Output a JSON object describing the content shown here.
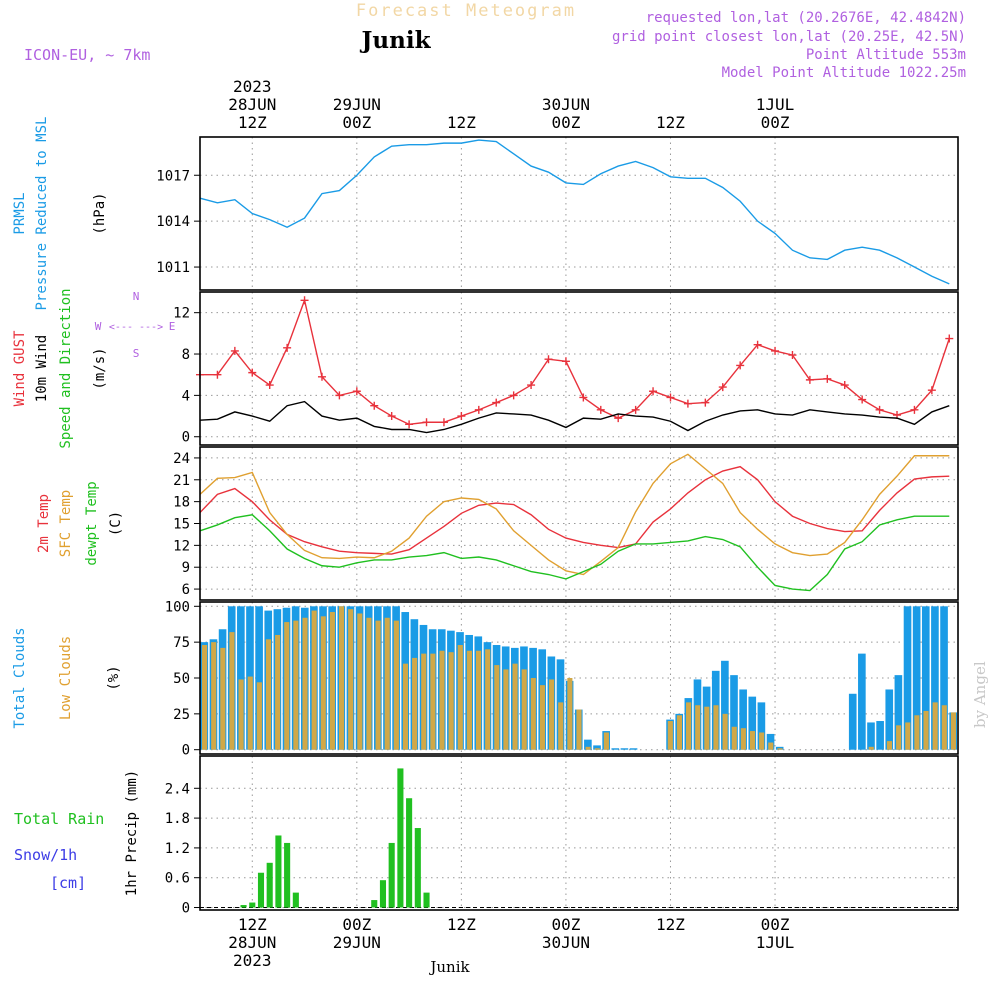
{
  "header": {
    "title": "Forecast Meteogram",
    "location": "Junik",
    "model": "ICON-EU, ~ 7km",
    "requested": "requested lon,lat (20.2676E, 42.4842N)",
    "gridpoint": "grid point closest lon,lat (20.25E, 42.5N)",
    "point_altitude": "Point Altitude 553m",
    "model_altitude": "Model Point Altitude 1022.25m"
  },
  "footer": {
    "location": "Junik",
    "watermark": "by Angel"
  },
  "colors": {
    "pressure": "#1a9be6",
    "gust": "#e8323c",
    "wind": "#000000",
    "temp": "#e8323c",
    "sfc": "#e0a030",
    "dew": "#20c020",
    "total_cloud": "#1a9be6",
    "low_cloud": "#d0a848",
    "rain": "#20c020",
    "snow": "#3c3ce6",
    "purple": "#b060e0"
  },
  "chart_data": {
    "type": "meteogram",
    "time_axis": {
      "start": "2023-06-28 06Z",
      "end": "2023-07-01 21Z",
      "step": "1h",
      "top_labels": [
        {
          "lines": [
            "2023",
            "28JUN",
            "12Z"
          ]
        },
        {
          "lines": [
            "29JUN",
            "00Z"
          ]
        },
        {
          "lines": [
            "12Z"
          ]
        },
        {
          "lines": [
            "30JUN",
            "00Z"
          ]
        },
        {
          "lines": [
            "12Z"
          ]
        },
        {
          "lines": [
            "1JUL",
            "00Z"
          ]
        }
      ],
      "bottom_labels": [
        {
          "lines": [
            "12Z",
            "28JUN",
            "2023"
          ]
        },
        {
          "lines": [
            "00Z",
            "29JUN"
          ]
        },
        {
          "lines": [
            "12Z"
          ]
        },
        {
          "lines": [
            "00Z",
            "30JUN"
          ]
        },
        {
          "lines": [
            "12Z"
          ]
        },
        {
          "lines": [
            "00Z",
            "1JUL"
          ]
        }
      ]
    },
    "panels": [
      {
        "id": "pressure",
        "ylabels": [
          "PRMSL",
          "Pressure Reduced to MSL"
        ],
        "unit": "(hPa)",
        "ylim": [
          1009.5,
          1019.5
        ],
        "yticks": [
          1011,
          1014,
          1017
        ],
        "series": [
          {
            "name": "PRMSL",
            "x": [
              6,
              8,
              10,
              12,
              14,
              16,
              18,
              20,
              22,
              24,
              26,
              28,
              30,
              32,
              34,
              36,
              38,
              40,
              42,
              44,
              46,
              48,
              50,
              52,
              54,
              56,
              58,
              60,
              62,
              64,
              66,
              68,
              70,
              72,
              74,
              76,
              78,
              80,
              82,
              84,
              86,
              88,
              90,
              92
            ],
            "y": [
              1015.5,
              1015.2,
              1015.4,
              1014.5,
              1014.1,
              1013.6,
              1014.2,
              1015.8,
              1016.0,
              1017.0,
              1018.2,
              1018.9,
              1019.0,
              1019.0,
              1019.1,
              1019.1,
              1019.3,
              1019.2,
              1018.4,
              1017.6,
              1017.2,
              1016.5,
              1016.4,
              1017.1,
              1017.6,
              1017.9,
              1017.5,
              1016.9,
              1016.8,
              1016.8,
              1016.2,
              1015.3,
              1014.0,
              1013.2,
              1012.1,
              1011.6,
              1011.5,
              1012.1,
              1012.3,
              1012.1,
              1011.6,
              1011.0,
              1010.4,
              1009.9
            ]
          }
        ]
      },
      {
        "id": "wind",
        "ylabels": [
          "Wind GUST",
          "10m Wind",
          "Speed and Direction"
        ],
        "unit": "(m/s)",
        "compass": {
          "n": "N",
          "s": "S",
          "e": "E",
          "w": "W",
          "arrow": "<--- --->"
        },
        "ylim": [
          -0.8,
          14
        ],
        "yticks": [
          0,
          4,
          8,
          12
        ],
        "series": [
          {
            "name": "Wind GUST",
            "x": [
              6,
              8,
              10,
              12,
              14,
              16,
              18,
              20,
              22,
              24,
              26,
              28,
              30,
              32,
              34,
              36,
              38,
              40,
              42,
              44,
              46,
              48,
              50,
              52,
              54,
              56,
              58,
              60,
              62,
              64,
              66,
              68,
              70,
              72,
              74,
              76,
              78,
              80,
              82,
              84,
              86,
              88,
              90,
              92
            ],
            "y": [
              6.0,
              6.0,
              8.3,
              6.2,
              5.0,
              8.6,
              13.2,
              5.8,
              4.0,
              4.4,
              3.0,
              2.0,
              1.2,
              1.4,
              1.4,
              2.0,
              2.6,
              3.3,
              4.0,
              5.0,
              7.5,
              7.3,
              3.8,
              2.6,
              1.8,
              2.6,
              4.4,
              3.8,
              3.2,
              3.3,
              4.8,
              6.9,
              8.9,
              8.3,
              7.9,
              5.5,
              5.6,
              5.0,
              3.6,
              2.6,
              2.1,
              2.6,
              4.5,
              9.5
            ]
          },
          {
            "name": "10m Wind",
            "x": [
              6,
              8,
              10,
              12,
              14,
              16,
              18,
              20,
              22,
              24,
              26,
              28,
              30,
              32,
              34,
              36,
              38,
              40,
              42,
              44,
              46,
              48,
              50,
              52,
              54,
              56,
              58,
              60,
              62,
              64,
              66,
              68,
              70,
              72,
              74,
              76,
              78,
              80,
              82,
              84,
              86,
              88,
              90,
              92
            ],
            "y": [
              1.6,
              1.7,
              2.4,
              2.0,
              1.5,
              3.0,
              3.4,
              2.0,
              1.6,
              1.8,
              1.0,
              0.7,
              0.7,
              0.4,
              0.7,
              1.2,
              1.8,
              2.3,
              2.2,
              2.1,
              1.6,
              0.9,
              1.8,
              1.7,
              2.2,
              2.0,
              1.9,
              1.5,
              0.6,
              1.5,
              2.1,
              2.5,
              2.6,
              2.2,
              2.1,
              2.6,
              2.4,
              2.2,
              2.1,
              1.9,
              1.8,
              1.2,
              2.4,
              3.0
            ]
          }
        ]
      },
      {
        "id": "temp",
        "ylabels": [
          "2m Temp",
          "SFC Temp",
          "dewpt Temp"
        ],
        "unit": "(C)",
        "ylim": [
          4.5,
          25.5
        ],
        "yticks": [
          6,
          9,
          12,
          15,
          18,
          21,
          24
        ],
        "series": [
          {
            "name": "2m Temp",
            "x": [
              6,
              8,
              10,
              12,
              14,
              16,
              18,
              20,
              22,
              24,
              26,
              28,
              30,
              32,
              34,
              36,
              38,
              40,
              42,
              44,
              46,
              48,
              50,
              52,
              54,
              56,
              58,
              60,
              62,
              64,
              66,
              68,
              70,
              72,
              74,
              76,
              78,
              80,
              82,
              84,
              86,
              88,
              90,
              92
            ],
            "y": [
              16.5,
              19.0,
              19.8,
              18.0,
              15.5,
              13.5,
              12.5,
              11.8,
              11.2,
              11.0,
              10.9,
              10.8,
              11.4,
              13.0,
              14.6,
              16.4,
              17.5,
              17.8,
              17.6,
              16.2,
              14.2,
              13.0,
              12.4,
              12.0,
              11.7,
              12.2,
              15.2,
              17.0,
              19.2,
              21.0,
              22.2,
              22.8,
              21.0,
              18.0,
              16.0,
              15.0,
              14.3,
              13.9,
              14.0,
              16.8,
              19.2,
              21.1,
              21.4,
              21.5
            ]
          },
          {
            "name": "SFC Temp",
            "x": [
              6,
              8,
              10,
              12,
              14,
              16,
              18,
              20,
              22,
              24,
              26,
              28,
              30,
              32,
              34,
              36,
              38,
              40,
              42,
              44,
              46,
              48,
              50,
              52,
              54,
              56,
              58,
              60,
              62,
              64,
              66,
              68,
              70,
              72,
              74,
              76,
              78,
              80,
              82,
              84,
              86,
              88,
              90,
              92
            ],
            "y": [
              19.0,
              21.2,
              21.3,
              22.0,
              16.5,
              13.5,
              11.3,
              10.3,
              10.2,
              10.4,
              10.3,
              11.2,
              13.0,
              16.0,
              18.0,
              18.5,
              18.3,
              17.0,
              14.0,
              12.0,
              10.0,
              8.5,
              8.0,
              9.8,
              11.7,
              16.6,
              20.5,
              23.2,
              24.5,
              22.5,
              20.5,
              16.5,
              14.2,
              12.2,
              11.0,
              10.6,
              10.8,
              12.4,
              15.5,
              19.0,
              21.5,
              24.3,
              24.3,
              24.3
            ]
          },
          {
            "name": "dewpt Temp",
            "x": [
              6,
              8,
              10,
              12,
              14,
              16,
              18,
              20,
              22,
              24,
              26,
              28,
              30,
              32,
              34,
              36,
              38,
              40,
              42,
              44,
              46,
              48,
              50,
              52,
              54,
              56,
              58,
              60,
              62,
              64,
              66,
              68,
              70,
              72,
              74,
              76,
              78,
              80,
              82,
              84,
              86,
              88,
              90,
              92
            ],
            "y": [
              14.0,
              14.8,
              15.8,
              16.2,
              14.0,
              11.5,
              10.2,
              9.2,
              9.0,
              9.6,
              10.0,
              10.0,
              10.4,
              10.6,
              11.0,
              10.2,
              10.4,
              10.0,
              9.2,
              8.4,
              8.0,
              7.4,
              8.4,
              9.4,
              11.2,
              12.2,
              12.2,
              12.4,
              12.6,
              13.2,
              12.8,
              11.8,
              9.0,
              6.5,
              6.0,
              5.8,
              8.0,
              11.5,
              12.5,
              14.8,
              15.5,
              16.0,
              16.0,
              16.0
            ]
          }
        ]
      },
      {
        "id": "clouds",
        "ylabels": [
          "Total Clouds",
          "Low Clouds"
        ],
        "unit": "(%)",
        "ylim": [
          -3,
          103
        ],
        "yticks": [
          0,
          25,
          50,
          75,
          100
        ],
        "series": [
          {
            "name": "Total Clouds",
            "values": [
              75,
              77,
              84,
              100,
              100,
              100,
              100,
              97,
              98,
              99,
              100,
              99,
              100,
              100,
              100,
              100,
              100,
              100,
              100,
              100,
              100,
              100,
              96,
              91,
              87,
              84,
              84,
              83,
              82,
              80,
              79,
              75,
              73,
              72,
              71,
              72,
              71,
              70,
              65,
              63,
              48,
              28,
              7,
              3,
              13,
              1,
              1,
              1,
              0,
              0,
              0,
              21,
              25,
              36,
              49,
              44,
              55,
              62,
              52,
              42,
              37,
              33,
              11,
              2,
              0,
              0,
              0,
              0,
              0,
              0,
              0,
              39,
              67,
              19,
              20,
              42,
              52,
              100,
              100,
              100,
              100,
              100,
              26
            ]
          },
          {
            "name": "Low Clouds",
            "values": [
              73,
              75,
              71,
              82,
              49,
              51,
              47,
              77,
              80,
              89,
              90,
              92,
              97,
              93,
              96,
              100,
              98,
              95,
              92,
              90,
              92,
              90,
              60,
              64,
              67,
              67,
              69,
              68,
              73,
              69,
              69,
              70,
              59,
              56,
              60,
              56,
              50,
              45,
              49,
              33,
              50,
              28,
              2,
              1,
              12,
              0,
              0,
              0,
              0,
              0,
              0,
              20,
              24,
              33,
              31,
              30,
              31,
              25,
              16,
              15,
              13,
              12,
              5,
              1,
              0,
              0,
              0,
              0,
              0,
              0,
              0,
              0,
              0,
              2,
              0,
              6,
              17,
              19,
              24,
              27,
              33,
              31,
              26
            ]
          }
        ]
      },
      {
        "id": "precip",
        "ylabels": [
          "1hr Precip (mm)"
        ],
        "left_legend": [
          "Total  Rain",
          "Snow/1h",
          "[cm]"
        ],
        "ylim": [
          -0.05,
          3.05
        ],
        "yticks": [
          0,
          0.6,
          1.2,
          1.8,
          2.4
        ],
        "series": [
          {
            "name": "Total Rain",
            "x": [
              11,
              12,
              13,
              14,
              15,
              16,
              17,
              18,
              19,
              26,
              27,
              28,
              29,
              30,
              31,
              32,
              33,
              34,
              35
            ],
            "y": [
              0.05,
              0.1,
              0.7,
              0.9,
              1.45,
              1.3,
              0.3,
              0.0,
              0.0,
              0.15,
              0.55,
              1.3,
              2.8,
              2.2,
              1.6,
              0.3,
              0.0,
              0.0,
              0.0
            ]
          }
        ]
      }
    ]
  }
}
